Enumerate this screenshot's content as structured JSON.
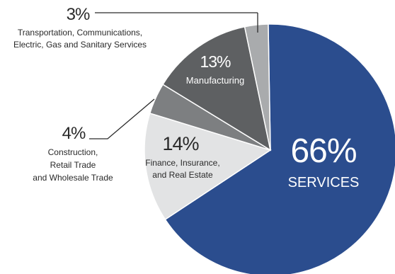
{
  "colors": {
    "services": "#2b4d8e",
    "finance": "#e2e3e4",
    "construction": "#7d7f81",
    "manufacturing": "#5e6062",
    "transportation": "#a9abad",
    "callout_text": "#2a2a2a",
    "leader_line": "#2a2a2a"
  },
  "chart_data": {
    "type": "pie",
    "title": "",
    "slices": [
      {
        "key": "services",
        "percent_label": "66%",
        "value": 66,
        "label_lines": [
          "SERVICES"
        ]
      },
      {
        "key": "finance",
        "percent_label": "14%",
        "value": 14,
        "label_lines": [
          "Finance, Insurance,",
          "and Real Estate"
        ]
      },
      {
        "key": "construction",
        "percent_label": "4%",
        "value": 4,
        "label_lines": [
          "Construction,",
          "Retail Trade",
          "and Wholesale Trade"
        ]
      },
      {
        "key": "manufacturing",
        "percent_label": "13%",
        "value": 13,
        "label_lines": [
          "Manufacturing"
        ]
      },
      {
        "key": "transportation",
        "percent_label": "3%",
        "value": 3,
        "label_lines": [
          "Transportation, Communications,",
          "Electric, Gas and Sanitary Services"
        ]
      }
    ]
  }
}
